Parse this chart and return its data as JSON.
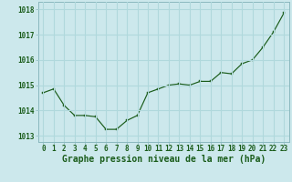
{
  "x": [
    0,
    1,
    2,
    3,
    4,
    5,
    6,
    7,
    8,
    9,
    10,
    11,
    12,
    13,
    14,
    15,
    16,
    17,
    18,
    19,
    20,
    21,
    22,
    23
  ],
  "y": [
    1014.7,
    1014.85,
    1014.2,
    1013.8,
    1013.8,
    1013.75,
    1013.25,
    1013.25,
    1013.6,
    1013.8,
    1014.7,
    1014.85,
    1015.0,
    1015.05,
    1015.0,
    1015.15,
    1015.15,
    1015.5,
    1015.45,
    1015.85,
    1016.0,
    1016.5,
    1017.1,
    1017.85
  ],
  "line_color": "#1a5c1a",
  "marker_color": "#1a5c1a",
  "bg_color": "#cce8ec",
  "grid_color": "#b0d8dc",
  "axis_label_color": "#1a5c1a",
  "tick_color": "#1a5c1a",
  "border_color": "#8ab8be",
  "xlabel": "Graphe pression niveau de la mer (hPa)",
  "ylim_min": 1012.75,
  "ylim_max": 1018.3,
  "yticks": [
    1013,
    1014,
    1015,
    1016,
    1017,
    1018
  ],
  "xticks": [
    0,
    1,
    2,
    3,
    4,
    5,
    6,
    7,
    8,
    9,
    10,
    11,
    12,
    13,
    14,
    15,
    16,
    17,
    18,
    19,
    20,
    21,
    22,
    23
  ],
  "xlabel_fontsize": 7,
  "tick_fontsize": 5.5
}
